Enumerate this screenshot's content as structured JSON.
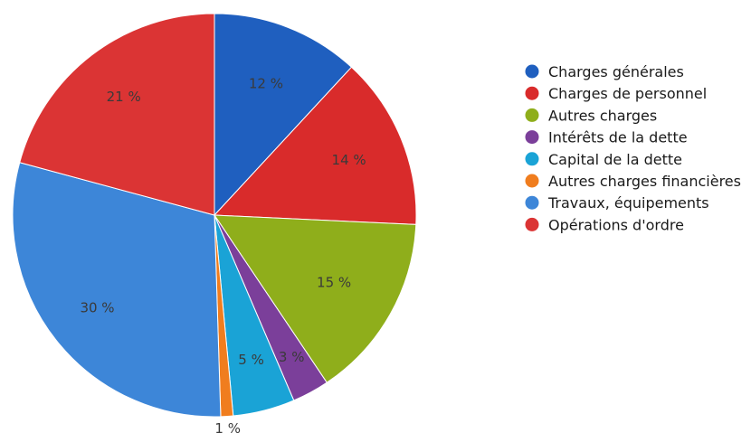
{
  "chart_data": {
    "type": "pie",
    "start_angle_deg": 0,
    "direction": "clockwise",
    "legend_position": "right",
    "slices": [
      {
        "label": "Charges générales",
        "value": 12,
        "display": "12 %",
        "color": "#1f5fbf"
      },
      {
        "label": "Charges de personnel",
        "value": 14,
        "display": "14 %",
        "color": "#d92b2b"
      },
      {
        "label": "Autres charges",
        "value": 15,
        "display": "15 %",
        "color": "#8fae1b"
      },
      {
        "label": "Intérêts de la dette",
        "value": 3,
        "display": "3 %",
        "color": "#7b3f9a"
      },
      {
        "label": "Capital de la dette",
        "value": 5,
        "display": "5 %",
        "color": "#1aa3d6"
      },
      {
        "label": "Autres charges financières",
        "value": 1,
        "display": "1 %",
        "color": "#f07d1e"
      },
      {
        "label": "Travaux, équipements",
        "value": 30,
        "display": "30 %",
        "color": "#3d86d8"
      },
      {
        "label": "Opérations d'ordre",
        "value": 21,
        "display": "21 %",
        "color": "#db3434"
      }
    ]
  }
}
